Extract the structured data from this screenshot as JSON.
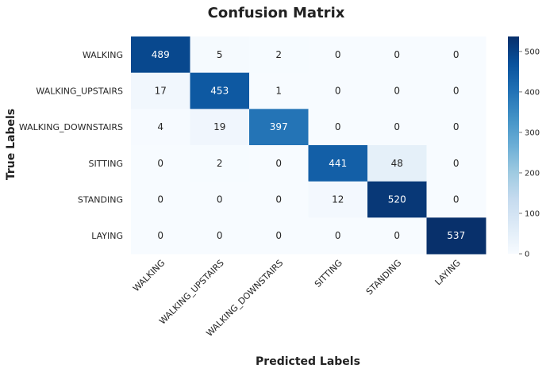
{
  "chart_data": {
    "type": "heatmap",
    "title": "Confusion Matrix",
    "xlabel": "Predicted Labels",
    "ylabel": "True Labels",
    "x_categories": [
      "WALKING",
      "WALKING_UPSTAIRS",
      "WALKING_DOWNSTAIRS",
      "SITTING",
      "STANDING",
      "LAYING"
    ],
    "y_categories": [
      "WALKING",
      "WALKING_UPSTAIRS",
      "WALKING_DOWNSTAIRS",
      "SITTING",
      "STANDING",
      "LAYING"
    ],
    "values": [
      [
        489,
        5,
        2,
        0,
        0,
        0
      ],
      [
        17,
        453,
        1,
        0,
        0,
        0
      ],
      [
        4,
        19,
        397,
        0,
        0,
        0
      ],
      [
        0,
        2,
        0,
        441,
        48,
        0
      ],
      [
        0,
        0,
        0,
        12,
        520,
        0
      ],
      [
        0,
        0,
        0,
        0,
        0,
        537
      ]
    ],
    "colorscale": "Blues",
    "color_low": "#f7fbff",
    "color_high": "#08306b",
    "colorbar_range": [
      0,
      537
    ],
    "colorbar_ticks": [
      "0",
      "100",
      "200",
      "300",
      "400",
      "500"
    ],
    "grid": false
  }
}
